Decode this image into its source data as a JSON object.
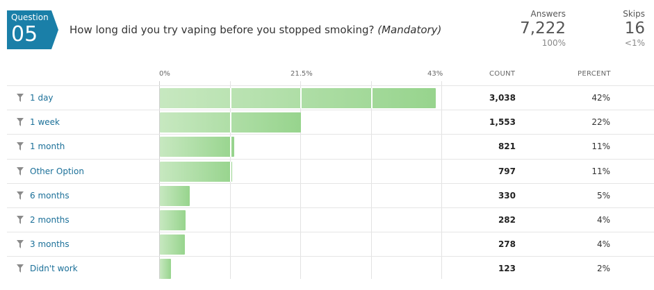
{
  "question": {
    "badge_label": "Question",
    "number": "05",
    "text": "How long did you try vaping before you stopped smoking?",
    "mandatory": "(Mandatory)"
  },
  "stats": {
    "answers_label": "Answers",
    "answers_value": "7,222",
    "answers_pct": "100%",
    "skips_label": "Skips",
    "skips_value": "16",
    "skips_pct": "<1%"
  },
  "table_headers": {
    "count": "COUNT",
    "percent": "PERCENT"
  },
  "chart_data": {
    "type": "bar",
    "orientation": "horizontal",
    "xlim": [
      0,
      43
    ],
    "x_ticks": [
      "0%",
      "21.5%",
      "43%"
    ],
    "categories": [
      "1 day",
      "1 week",
      "1 month",
      "Other Option",
      "6 months",
      "2 months",
      "3 months",
      "Didn't work"
    ],
    "counts": [
      "3,038",
      "1,553",
      "821",
      "797",
      "330",
      "282",
      "278",
      "123"
    ],
    "percent_labels": [
      "42%",
      "22%",
      "11%",
      "11%",
      "5%",
      "4%",
      "4%",
      "2%"
    ],
    "values": [
      42.07,
      21.5,
      11.37,
      11.04,
      4.57,
      3.9,
      3.85,
      1.7
    ],
    "colors": {
      "light": "#c7e8c0",
      "dark": "#97d48d"
    }
  }
}
